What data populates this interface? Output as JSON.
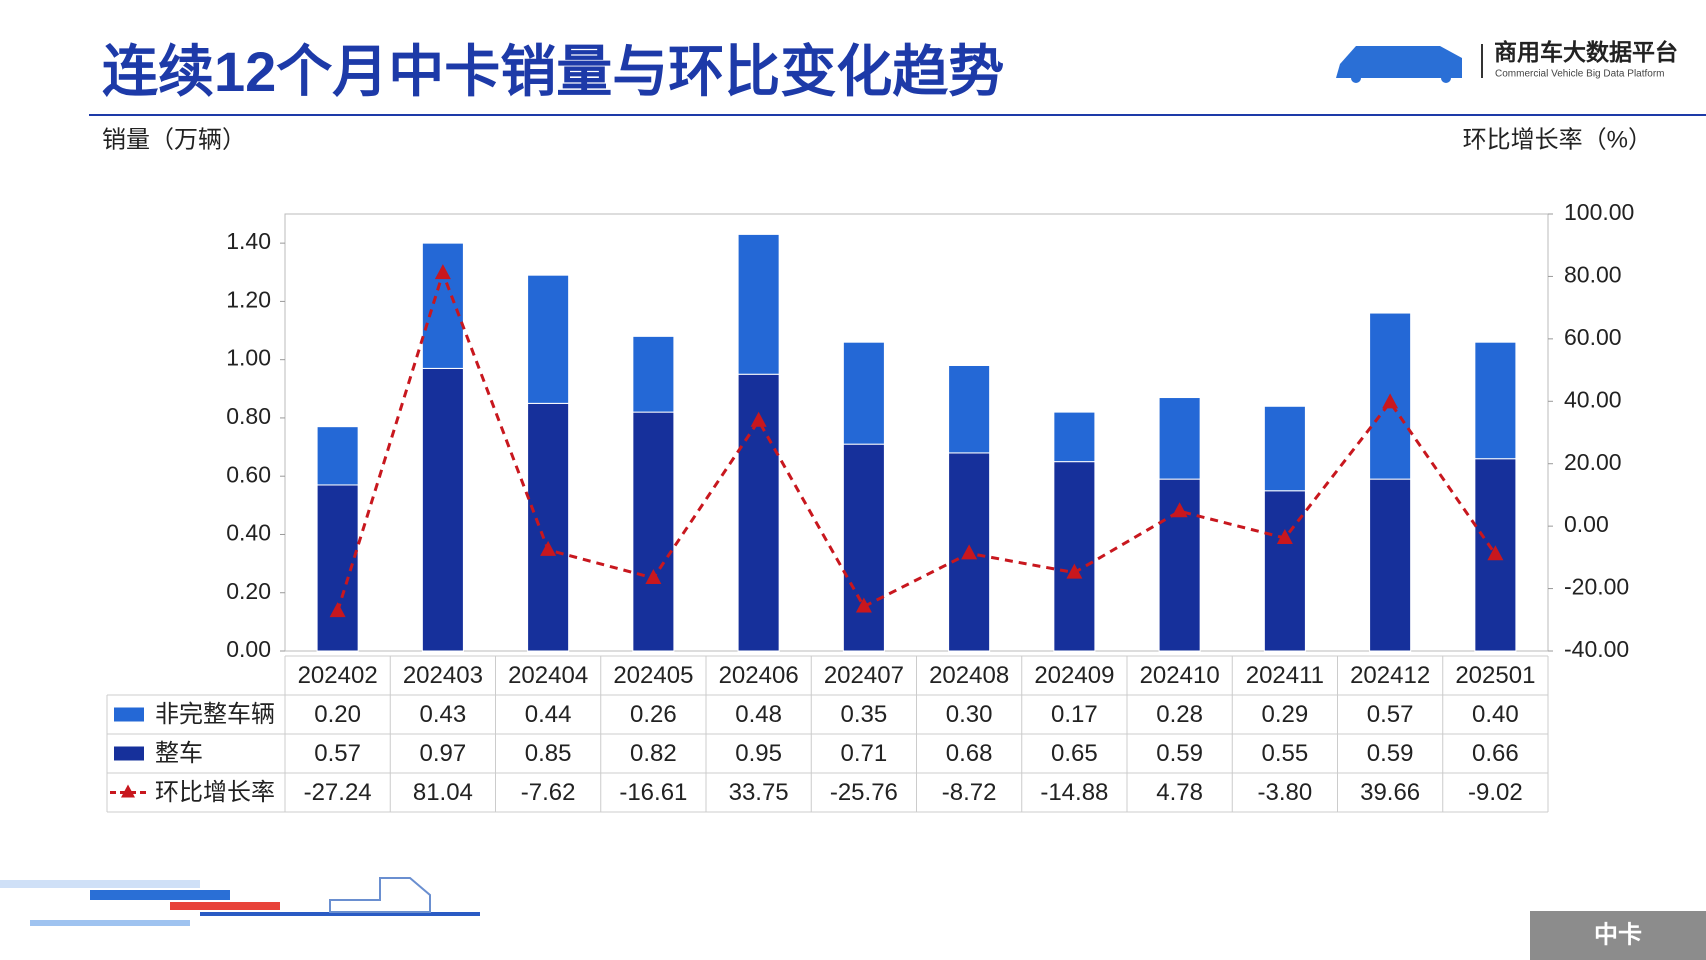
{
  "header": {
    "title": "连续12个月中卡销量与环比变化趋势",
    "logo_title": "商用车大数据平台",
    "logo_subtitle": "Commercial Vehicle Big Data Platform"
  },
  "footer": {
    "tab": "中卡"
  },
  "chart_data": {
    "type": "bar",
    "y_label": "销量（万辆）",
    "y2_label": "环比增长率（%）",
    "categories": [
      "202402",
      "202403",
      "202404",
      "202405",
      "202406",
      "202407",
      "202408",
      "202409",
      "202410",
      "202411",
      "202412",
      "202501"
    ],
    "series": [
      {
        "name": "非完整车辆",
        "type": "bar",
        "color": "#2468d6",
        "values": [
          0.2,
          0.43,
          0.44,
          0.26,
          0.48,
          0.35,
          0.3,
          0.17,
          0.28,
          0.29,
          0.57,
          0.4
        ],
        "value_labels": [
          "0.20",
          "0.43",
          "0.44",
          "0.26",
          "0.48",
          "0.35",
          "0.30",
          "0.17",
          "0.28",
          "0.29",
          "0.57",
          "0.40"
        ]
      },
      {
        "name": "整车",
        "type": "bar",
        "color": "#16309b",
        "values": [
          0.57,
          0.97,
          0.85,
          0.82,
          0.95,
          0.71,
          0.68,
          0.65,
          0.59,
          0.55,
          0.59,
          0.66
        ],
        "value_labels": [
          "0.57",
          "0.97",
          "0.85",
          "0.82",
          "0.95",
          "0.71",
          "0.68",
          "0.65",
          "0.59",
          "0.55",
          "0.59",
          "0.66"
        ]
      },
      {
        "name": "环比增长率",
        "type": "line",
        "axis": "y2",
        "color": "#c8171e",
        "values": [
          -27.24,
          81.04,
          -7.62,
          -16.61,
          33.75,
          -25.76,
          -8.72,
          -14.88,
          4.78,
          -3.8,
          39.66,
          -9.02
        ],
        "value_labels": [
          "-27.24",
          "81.04",
          "-7.62",
          "-16.61",
          "33.75",
          "-25.76",
          "-8.72",
          "-14.88",
          "4.78",
          "-3.80",
          "39.66",
          "-9.02"
        ]
      }
    ],
    "ylim": [
      0,
      1.5
    ],
    "yticks": [
      {
        "value": 0,
        "label": "0.00"
      },
      {
        "value": 0.2,
        "label": "0.20"
      },
      {
        "value": 0.4,
        "label": "0.40"
      },
      {
        "value": 0.6,
        "label": "0.60"
      },
      {
        "value": 0.8,
        "label": "0.80"
      },
      {
        "value": 1,
        "label": "1.00"
      },
      {
        "value": 1.2,
        "label": "1.20"
      },
      {
        "value": 1.4,
        "label": "1.40"
      }
    ],
    "y2lim": [
      -40,
      100
    ],
    "y2ticks": [
      {
        "value": -40,
        "label": "-40.00"
      },
      {
        "value": -20,
        "label": "-20.00"
      },
      {
        "value": 0,
        "label": "0.00"
      },
      {
        "value": 20,
        "label": "20.00"
      },
      {
        "value": 40,
        "label": "40.00"
      },
      {
        "value": 60,
        "label": "60.00"
      },
      {
        "value": 80,
        "label": "80.00"
      },
      {
        "value": 100,
        "label": "100.00"
      }
    ],
    "grid": false
  }
}
